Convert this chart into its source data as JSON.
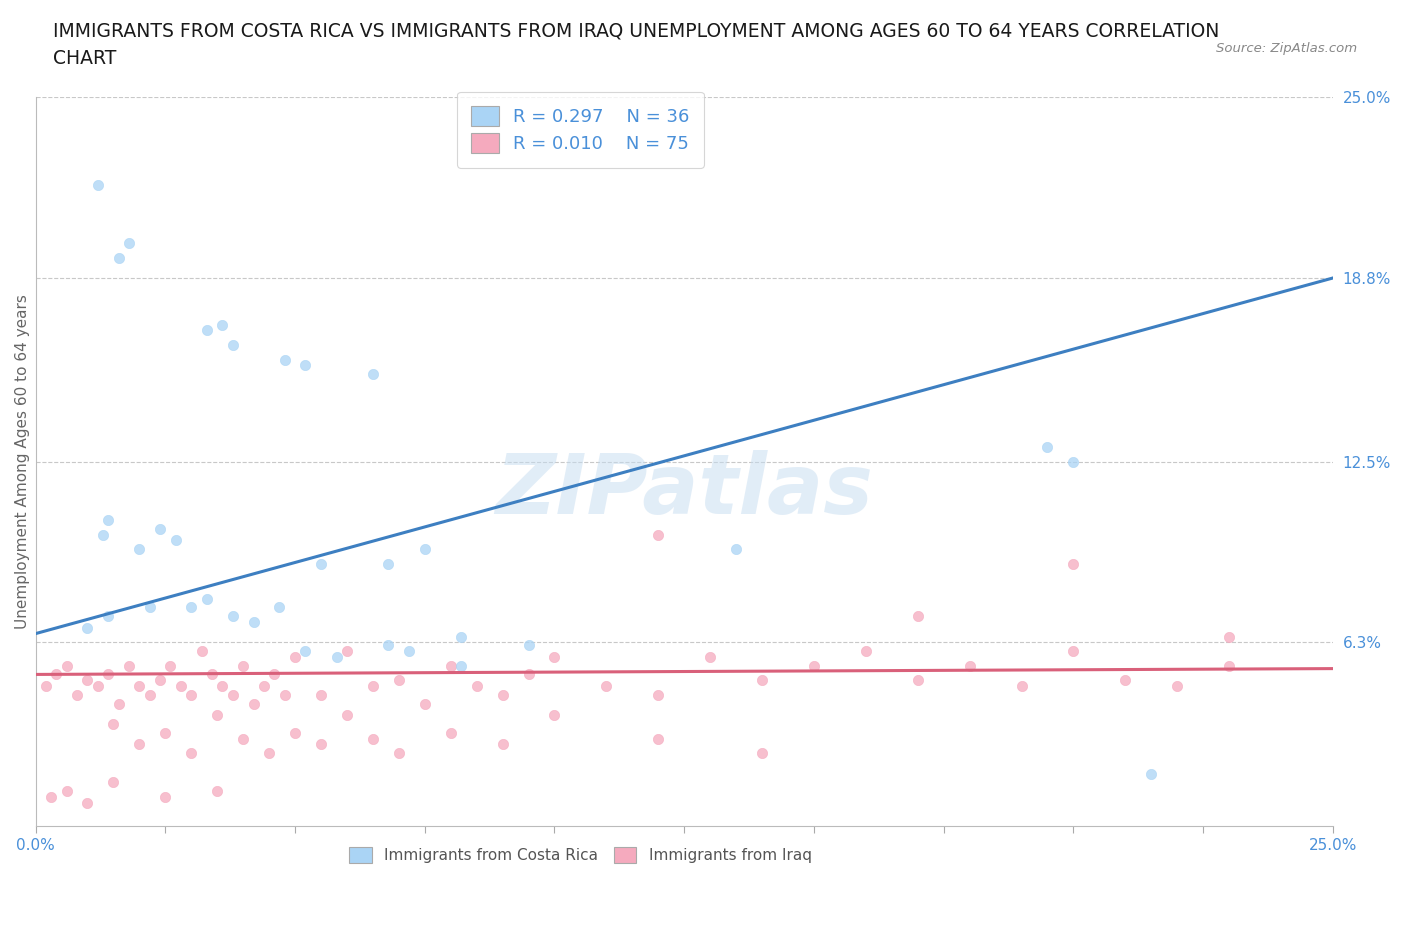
{
  "title_line1": "IMMIGRANTS FROM COSTA RICA VS IMMIGRANTS FROM IRAQ UNEMPLOYMENT AMONG AGES 60 TO 64 YEARS CORRELATION",
  "title_line2": "CHART",
  "source_text": "Source: ZipAtlas.com",
  "ylabel": "Unemployment Among Ages 60 to 64 years",
  "xlim": [
    0,
    0.25
  ],
  "ylim": [
    0,
    0.25
  ],
  "ytick_right_labels": [
    "6.3%",
    "12.5%",
    "18.8%",
    "25.0%"
  ],
  "ytick_right_values": [
    0.063,
    0.125,
    0.188,
    0.25
  ],
  "watermark": "ZIPatlas",
  "R_cr": "0.297",
  "N_cr": "36",
  "R_iraq": "0.010",
  "N_iraq": "75",
  "color_cr": "#aad4f5",
  "color_iraq": "#f5aabe",
  "color_line_cr": "#3d7fc1",
  "color_line_iraq": "#d9607a",
  "color_blue_text": "#4a90d9",
  "grid_color": "#c8c8c8",
  "background_color": "#ffffff",
  "title_fontsize": 13.5,
  "label_fontsize": 11,
  "tick_fontsize": 11,
  "legend_fontsize": 13,
  "trendline_cr_y0": 0.066,
  "trendline_cr_y1": 0.188,
  "trendline_iraq_y0": 0.052,
  "trendline_iraq_y1": 0.054,
  "cr_x": [
    0.012,
    0.016,
    0.018,
    0.033,
    0.036,
    0.038,
    0.048,
    0.052,
    0.013,
    0.014,
    0.02,
    0.024,
    0.027,
    0.055,
    0.065,
    0.068,
    0.075,
    0.082,
    0.135,
    0.195,
    0.01,
    0.014,
    0.022,
    0.03,
    0.033,
    0.038,
    0.042,
    0.047,
    0.052,
    0.058,
    0.068,
    0.072,
    0.082,
    0.095,
    0.2,
    0.215
  ],
  "cr_y": [
    0.22,
    0.195,
    0.2,
    0.17,
    0.172,
    0.165,
    0.16,
    0.158,
    0.1,
    0.105,
    0.095,
    0.102,
    0.098,
    0.09,
    0.155,
    0.09,
    0.095,
    0.065,
    0.095,
    0.13,
    0.068,
    0.072,
    0.075,
    0.075,
    0.078,
    0.072,
    0.07,
    0.075,
    0.06,
    0.058,
    0.062,
    0.06,
    0.055,
    0.062,
    0.125,
    0.018
  ],
  "iraq_x": [
    0.002,
    0.004,
    0.006,
    0.008,
    0.01,
    0.012,
    0.014,
    0.016,
    0.018,
    0.02,
    0.022,
    0.024,
    0.026,
    0.028,
    0.03,
    0.032,
    0.034,
    0.036,
    0.038,
    0.04,
    0.042,
    0.044,
    0.046,
    0.048,
    0.05,
    0.055,
    0.06,
    0.065,
    0.07,
    0.075,
    0.08,
    0.085,
    0.09,
    0.095,
    0.1,
    0.11,
    0.12,
    0.13,
    0.14,
    0.15,
    0.16,
    0.17,
    0.18,
    0.19,
    0.2,
    0.21,
    0.22,
    0.23,
    0.015,
    0.02,
    0.025,
    0.03,
    0.035,
    0.04,
    0.045,
    0.05,
    0.055,
    0.06,
    0.065,
    0.07,
    0.08,
    0.09,
    0.1,
    0.12,
    0.14,
    0.003,
    0.006,
    0.01,
    0.015,
    0.025,
    0.035,
    0.12,
    0.2,
    0.23,
    0.17
  ],
  "iraq_y": [
    0.048,
    0.052,
    0.055,
    0.045,
    0.05,
    0.048,
    0.052,
    0.042,
    0.055,
    0.048,
    0.045,
    0.05,
    0.055,
    0.048,
    0.045,
    0.06,
    0.052,
    0.048,
    0.045,
    0.055,
    0.042,
    0.048,
    0.052,
    0.045,
    0.058,
    0.045,
    0.06,
    0.048,
    0.05,
    0.042,
    0.055,
    0.048,
    0.045,
    0.052,
    0.058,
    0.048,
    0.045,
    0.058,
    0.05,
    0.055,
    0.06,
    0.05,
    0.055,
    0.048,
    0.06,
    0.05,
    0.048,
    0.055,
    0.035,
    0.028,
    0.032,
    0.025,
    0.038,
    0.03,
    0.025,
    0.032,
    0.028,
    0.038,
    0.03,
    0.025,
    0.032,
    0.028,
    0.038,
    0.03,
    0.025,
    0.01,
    0.012,
    0.008,
    0.015,
    0.01,
    0.012,
    0.1,
    0.09,
    0.065,
    0.072
  ]
}
